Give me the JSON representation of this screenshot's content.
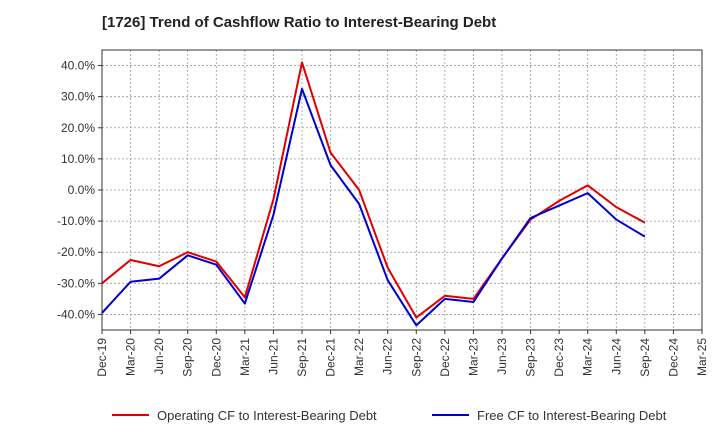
{
  "chart_data": {
    "type": "line",
    "title": "[1726]  Trend of Cashflow Ratio to Interest-Bearing Debt",
    "xlabel": "",
    "ylabel": "",
    "ylim": [
      -45,
      45
    ],
    "yticks": [
      -40,
      -30,
      -20,
      -10,
      0,
      10,
      20,
      30,
      40
    ],
    "ytick_labels": [
      "-40.0%",
      "-30.0%",
      "-20.0%",
      "-10.0%",
      "0.0%",
      "10.0%",
      "20.0%",
      "30.0%",
      "40.0%"
    ],
    "xlim": [
      "Dec-19",
      "Mar-25"
    ],
    "xtick_labels": [
      "Dec-19",
      "Mar-20",
      "Jun-20",
      "Sep-20",
      "Dec-20",
      "Mar-21",
      "Jun-21",
      "Sep-21",
      "Dec-21",
      "Mar-22",
      "Jun-22",
      "Sep-22",
      "Dec-22",
      "Mar-23",
      "Jun-23",
      "Sep-23",
      "Dec-23",
      "Mar-24",
      "Jun-24",
      "Sep-24",
      "Dec-24",
      "Mar-25"
    ],
    "grid": true,
    "legend_position": "bottom",
    "x": [
      "Dec-19",
      "Mar-20",
      "Jun-20",
      "Sep-20",
      "Dec-20",
      "Mar-21",
      "Jun-21",
      "Sep-21",
      "Dec-21",
      "Mar-22",
      "Jun-22",
      "Sep-22",
      "Dec-22",
      "Mar-23",
      "Jun-23",
      "Sep-23",
      "Dec-23",
      "Mar-24",
      "Jun-24",
      "Sep-24"
    ],
    "series": [
      {
        "name": "Operating CF to Interest-Bearing Debt",
        "color": "#e00000",
        "values": [
          -30.0,
          -22.5,
          -24.5,
          -20.0,
          -23.0,
          -34.5,
          -3.0,
          41.0,
          12.0,
          0.0,
          -25.0,
          -41.0,
          -34.0,
          -35.0,
          -22.0,
          -9.5,
          -3.5,
          1.5,
          -5.5,
          -10.5
        ]
      },
      {
        "name": "Free CF to Interest-Bearing Debt",
        "color": "#0000cc",
        "values": [
          -39.5,
          -29.5,
          -28.5,
          -21.0,
          -24.0,
          -36.5,
          -8.0,
          32.5,
          8.0,
          -4.5,
          -29.0,
          -43.5,
          -35.0,
          -36.0,
          -22.0,
          -9.0,
          -5.0,
          -1.0,
          -9.5,
          -15.0
        ]
      }
    ]
  }
}
